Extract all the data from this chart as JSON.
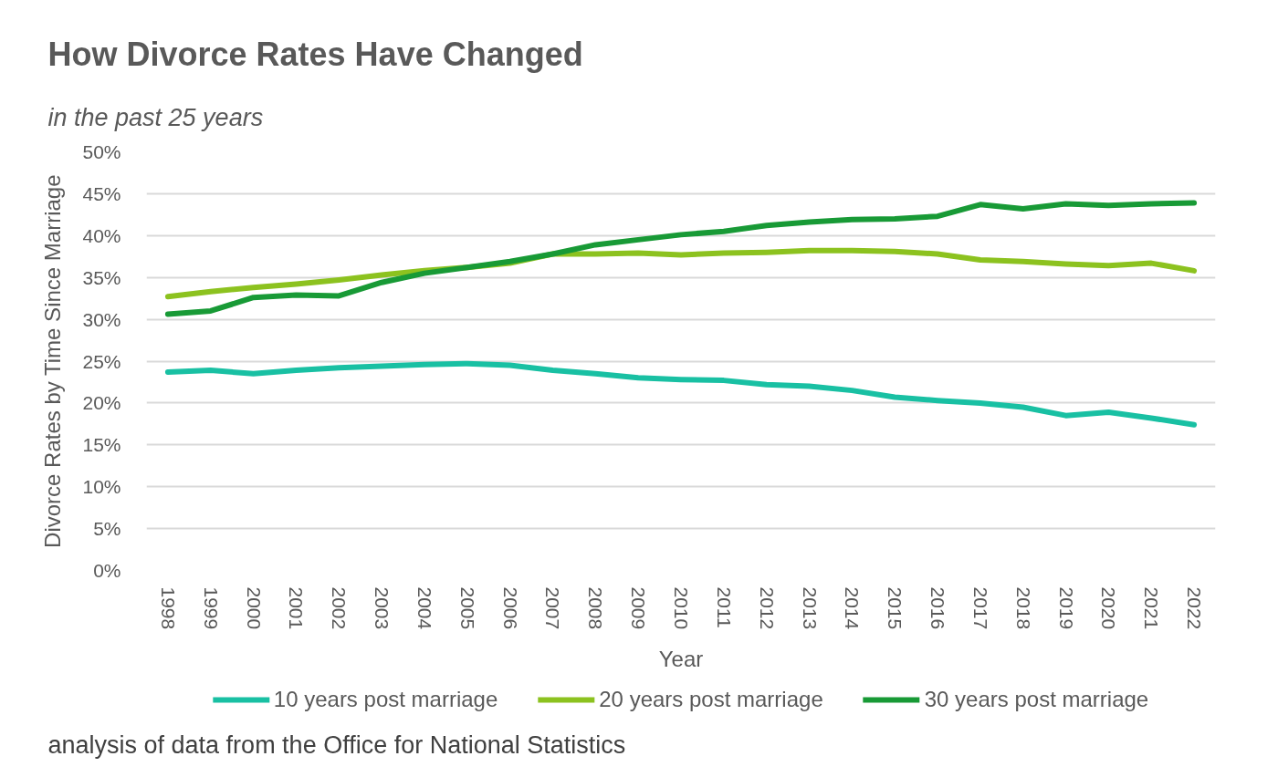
{
  "chart_data": {
    "type": "line",
    "title": "How Divorce Rates Have Changed",
    "subtitle": "in the past 25 years",
    "xlabel": "Year",
    "ylabel": "Divorce Rates by Time Since Marriage",
    "categories": [
      "1998",
      "1999",
      "2000",
      "2001",
      "2002",
      "2003",
      "2004",
      "2005",
      "2006",
      "2007",
      "2008",
      "2009",
      "2010",
      "2011",
      "2012",
      "2013",
      "2014",
      "2015",
      "2016",
      "2017",
      "2018",
      "2019",
      "2020",
      "2021",
      "2022"
    ],
    "ylim": [
      0,
      50
    ],
    "yticks": [
      {
        "value": 0,
        "label": "0%"
      },
      {
        "value": 5,
        "label": "5%"
      },
      {
        "value": 10,
        "label": "10%"
      },
      {
        "value": 15,
        "label": "15%"
      },
      {
        "value": 20,
        "label": "20%"
      },
      {
        "value": 25,
        "label": "25%"
      },
      {
        "value": 30,
        "label": "30%"
      },
      {
        "value": 35,
        "label": "35%"
      },
      {
        "value": 40,
        "label": "40%"
      },
      {
        "value": 45,
        "label": "45%"
      },
      {
        "value": 50,
        "label": "50%"
      }
    ],
    "grid": "y",
    "legend": "bottom",
    "line_style": "solid",
    "annotations": [
      "analysis of data from the Office for National Statistics"
    ],
    "series": [
      {
        "name": "10 years post marriage",
        "color": "#19c0a3",
        "values": [
          23.7,
          23.9,
          23.5,
          23.9,
          24.2,
          24.4,
          24.6,
          24.7,
          24.5,
          23.9,
          23.5,
          23.0,
          22.8,
          22.7,
          22.2,
          22.0,
          21.5,
          20.7,
          20.3,
          20.0,
          19.5,
          18.5,
          18.9,
          18.2,
          17.4
        ]
      },
      {
        "name": "20 years post marriage",
        "color": "#8cc21f",
        "values": [
          32.7,
          33.3,
          33.8,
          34.2,
          34.7,
          35.3,
          35.8,
          36.2,
          36.7,
          37.8,
          37.8,
          37.9,
          37.7,
          37.9,
          38.0,
          38.2,
          38.2,
          38.1,
          37.8,
          37.1,
          36.9,
          36.6,
          36.4,
          36.7,
          35.8
        ]
      },
      {
        "name": "30 years post marriage",
        "color": "#189a36",
        "values": [
          30.6,
          31.0,
          32.6,
          32.9,
          32.8,
          34.4,
          35.5,
          36.2,
          36.9,
          37.8,
          38.9,
          39.5,
          40.1,
          40.5,
          41.2,
          41.6,
          41.9,
          42.0,
          42.3,
          43.7,
          43.2,
          43.8,
          43.6,
          43.8,
          43.9
        ]
      }
    ]
  }
}
